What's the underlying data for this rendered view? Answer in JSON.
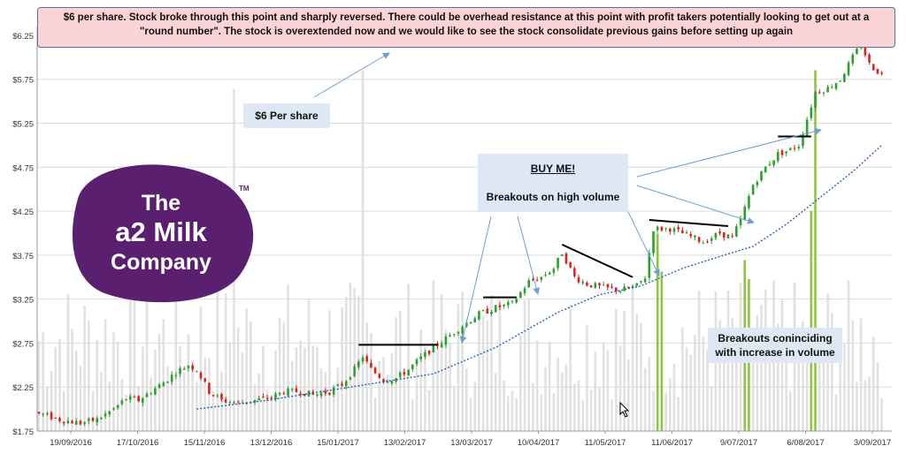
{
  "annotations": {
    "top_note_line1": "$6 per share. Stock broke through this point and sharply reversed.   There could be overhead resistance at this point with profit takers potentially looking to get out at a",
    "top_note_line2": "\"round number\".  The stock is overextended now and we would like to see the stock consolidate previous gains before setting up again",
    "six_dollar": "$6 Per share",
    "buy_me": "BUY ME!",
    "breakouts_high_volume": "Breakouts on high volume",
    "breakouts_coinciding_1": "Breakouts coninciding",
    "breakouts_coinciding_2": "with increase in volume"
  },
  "logo": {
    "line1": "The",
    "line2": "a2 Milk",
    "line3": "Company",
    "tm": "TM",
    "color": "#5a1f6e"
  },
  "colors": {
    "up_candle": "#2ca02c",
    "down_candle": "#e02020",
    "volume": "#d9d9d9",
    "volume_highlight": "#8cc63f",
    "moving_average": "#2f5fb3",
    "resistance_line": "#000000",
    "annotation_arrow": "#6f9fd8",
    "note_fill": "#dde8f4",
    "top_note_fill": "#f9d3d6"
  },
  "chart_data": {
    "type": "candlestick",
    "title": "",
    "xlabel": "",
    "ylabel": "",
    "ylim": [
      1.75,
      6.35
    ],
    "yticks": [
      "$1.75",
      "$2.25",
      "$2.75",
      "$3.25",
      "$3.75",
      "$4.25",
      "$4.75",
      "$5.25",
      "$5.75",
      "$6.25"
    ],
    "ytick_values": [
      1.75,
      2.25,
      2.75,
      3.25,
      3.75,
      4.25,
      4.75,
      5.25,
      5.75,
      6.25
    ],
    "xticks": [
      "19/09/2016",
      "17/10/2016",
      "15/11/2016",
      "13/12/2016",
      "15/01/2017",
      "13/02/2017",
      "13/03/2017",
      "10/04/2017",
      "11/05/2017",
      "11/06/2017",
      "9/07/2017",
      "6/08/2017",
      "3/09/2017"
    ],
    "grid": "horizontal",
    "price_path": [
      [
        0,
        1.95
      ],
      [
        5,
        1.88
      ],
      [
        10,
        1.84
      ],
      [
        14,
        1.88
      ],
      [
        18,
        2.0
      ],
      [
        21,
        2.12
      ],
      [
        24,
        2.1
      ],
      [
        27,
        2.2
      ],
      [
        30,
        2.3
      ],
      [
        33,
        2.42
      ],
      [
        36,
        2.5
      ],
      [
        38,
        2.45
      ],
      [
        41,
        2.2
      ],
      [
        44,
        2.1
      ],
      [
        48,
        2.07
      ],
      [
        52,
        2.1
      ],
      [
        56,
        2.13
      ],
      [
        59,
        2.2
      ],
      [
        63,
        2.2
      ],
      [
        66,
        2.16
      ],
      [
        70,
        2.2
      ],
      [
        73,
        2.28
      ],
      [
        76,
        2.45
      ],
      [
        78,
        2.6
      ],
      [
        80,
        2.45
      ],
      [
        83,
        2.33
      ],
      [
        86,
        2.35
      ],
      [
        89,
        2.45
      ],
      [
        92,
        2.58
      ],
      [
        95,
        2.7
      ],
      [
        98,
        2.8
      ],
      [
        102,
        2.95
      ],
      [
        106,
        3.08
      ],
      [
        110,
        3.15
      ],
      [
        114,
        3.2
      ],
      [
        118,
        3.45
      ],
      [
        121,
        3.5
      ],
      [
        124,
        3.6
      ],
      [
        126,
        3.78
      ],
      [
        129,
        3.5
      ],
      [
        132,
        3.42
      ],
      [
        136,
        3.38
      ],
      [
        140,
        3.35
      ],
      [
        144,
        3.4
      ],
      [
        146,
        3.5
      ],
      [
        148,
        4.05
      ],
      [
        152,
        4.05
      ],
      [
        156,
        3.98
      ],
      [
        160,
        3.9
      ],
      [
        164,
        4.0
      ],
      [
        167,
        3.95
      ],
      [
        169,
        4.15
      ],
      [
        172,
        4.55
      ],
      [
        175,
        4.75
      ],
      [
        178,
        4.9
      ],
      [
        181,
        4.95
      ],
      [
        183,
        5.0
      ],
      [
        185,
        5.3
      ],
      [
        187,
        5.6
      ],
      [
        190,
        5.65
      ],
      [
        193,
        5.75
      ],
      [
        196,
        6.0
      ],
      [
        198,
        6.15
      ],
      [
        200,
        5.92
      ],
      [
        203,
        5.8
      ]
    ],
    "moving_average": [
      [
        38,
        2.0
      ],
      [
        55,
        2.1
      ],
      [
        75,
        2.25
      ],
      [
        95,
        2.4
      ],
      [
        110,
        2.7
      ],
      [
        125,
        3.1
      ],
      [
        135,
        3.3
      ],
      [
        145,
        3.4
      ],
      [
        155,
        3.6
      ],
      [
        165,
        3.75
      ],
      [
        172,
        3.85
      ],
      [
        180,
        4.1
      ],
      [
        188,
        4.4
      ],
      [
        196,
        4.7
      ],
      [
        203,
        5.0
      ]
    ],
    "resistance_lines": [
      {
        "x": [
          77,
          96
        ],
        "y": [
          2.73,
          2.73
        ]
      },
      {
        "x": [
          107,
          115
        ],
        "y": [
          3.27,
          3.27
        ]
      },
      {
        "x": [
          126,
          143
        ],
        "y": [
          3.87,
          3.5
        ]
      },
      {
        "x": [
          147,
          166
        ],
        "y": [
          4.15,
          4.08
        ]
      },
      {
        "x": [
          178,
          186
        ],
        "y": [
          5.1,
          5.1
        ]
      }
    ],
    "volume_spikes": [
      {
        "x": 78,
        "v": 0.95,
        "highlight": false
      },
      {
        "x": 47,
        "v": 0.9,
        "highlight": false
      },
      {
        "x": 149,
        "v": 0.52,
        "highlight": true
      },
      {
        "x": 150,
        "v": 0.42,
        "highlight": true
      },
      {
        "x": 170,
        "v": 0.45,
        "highlight": true
      },
      {
        "x": 171,
        "v": 0.4,
        "highlight": true
      },
      {
        "x": 186,
        "v": 0.58,
        "highlight": true
      },
      {
        "x": 187,
        "v": 0.95,
        "highlight": true
      }
    ]
  }
}
